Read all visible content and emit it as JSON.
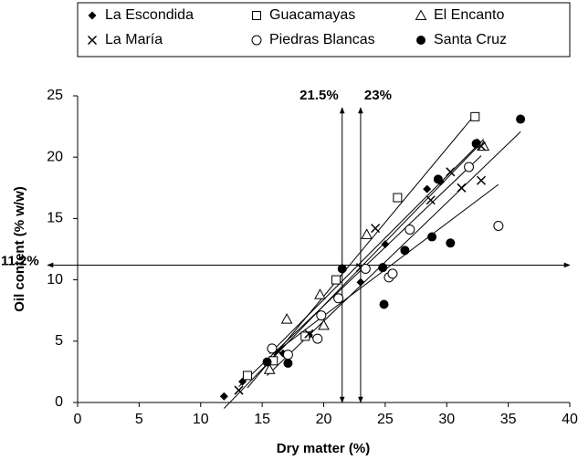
{
  "chart_data": {
    "type": "scatter",
    "xlabel": "Dry matter (%)",
    "ylabel": "Oil content (% w/w)",
    "xlim": [
      0,
      40
    ],
    "xticks": [
      0,
      5,
      10,
      15,
      20,
      25,
      30,
      35,
      40
    ],
    "ylim": [
      0,
      25
    ],
    "yticks": [
      0,
      5,
      10,
      15,
      20,
      25
    ],
    "grid": false,
    "trendlines": true,
    "series": [
      {
        "name": "La Escondida",
        "marker": "diamond",
        "color": "#000000",
        "x": [
          11.9,
          13.4,
          16.7,
          18.8,
          23.0,
          25.0,
          28.4,
          29.5,
          32.5
        ],
        "values": [
          0.5,
          1.7,
          4.0,
          5.5,
          9.8,
          12.9,
          17.4,
          18.0,
          21.2
        ]
      },
      {
        "name": "Guacamayas",
        "marker": "square",
        "color": "#000000",
        "x": [
          13.8,
          15.9,
          18.5,
          21.0,
          26.0,
          32.3
        ],
        "values": [
          2.2,
          3.4,
          5.4,
          10.0,
          16.7,
          23.3
        ]
      },
      {
        "name": "El Encanto",
        "marker": "triangle",
        "color": "#000000",
        "x": [
          15.6,
          17.0,
          19.7,
          20.0,
          23.5,
          33.0
        ],
        "values": [
          2.7,
          6.8,
          8.8,
          6.3,
          13.7,
          20.9
        ]
      },
      {
        "name": "La María",
        "marker": "cross",
        "color": "#000000",
        "x": [
          13.1,
          16.3,
          18.8,
          23.0,
          24.2,
          28.7,
          30.3,
          31.2,
          32.8,
          32.8
        ],
        "values": [
          1.0,
          4.2,
          5.6,
          11.0,
          14.2,
          16.5,
          18.8,
          17.5,
          18.1,
          20.9
        ]
      },
      {
        "name": "Piedras Blancas",
        "marker": "circle-open",
        "color": "#000000",
        "x": [
          15.8,
          17.1,
          19.5,
          19.8,
          21.2,
          23.4,
          25.3,
          25.6,
          27.0,
          31.8,
          34.2
        ],
        "values": [
          4.4,
          3.9,
          5.2,
          7.1,
          8.5,
          10.9,
          10.2,
          10.5,
          14.1,
          19.2,
          14.4
        ]
      },
      {
        "name": "Santa Cruz",
        "marker": "circle-filled",
        "color": "#000000",
        "x": [
          15.4,
          17.1,
          21.5,
          24.8,
          24.9,
          26.6,
          28.8,
          29.3,
          30.3,
          32.4,
          36.0
        ],
        "values": [
          3.3,
          3.2,
          10.9,
          11.0,
          8.0,
          12.4,
          13.5,
          18.2,
          13.0,
          21.1,
          23.1
        ]
      }
    ],
    "reference_lines": [
      {
        "axis": "x",
        "value": 21.5,
        "label": "21.5%"
      },
      {
        "axis": "x",
        "value": 23,
        "label": "23%"
      },
      {
        "axis": "y",
        "value": 11.2,
        "label": "11.2%"
      }
    ]
  }
}
